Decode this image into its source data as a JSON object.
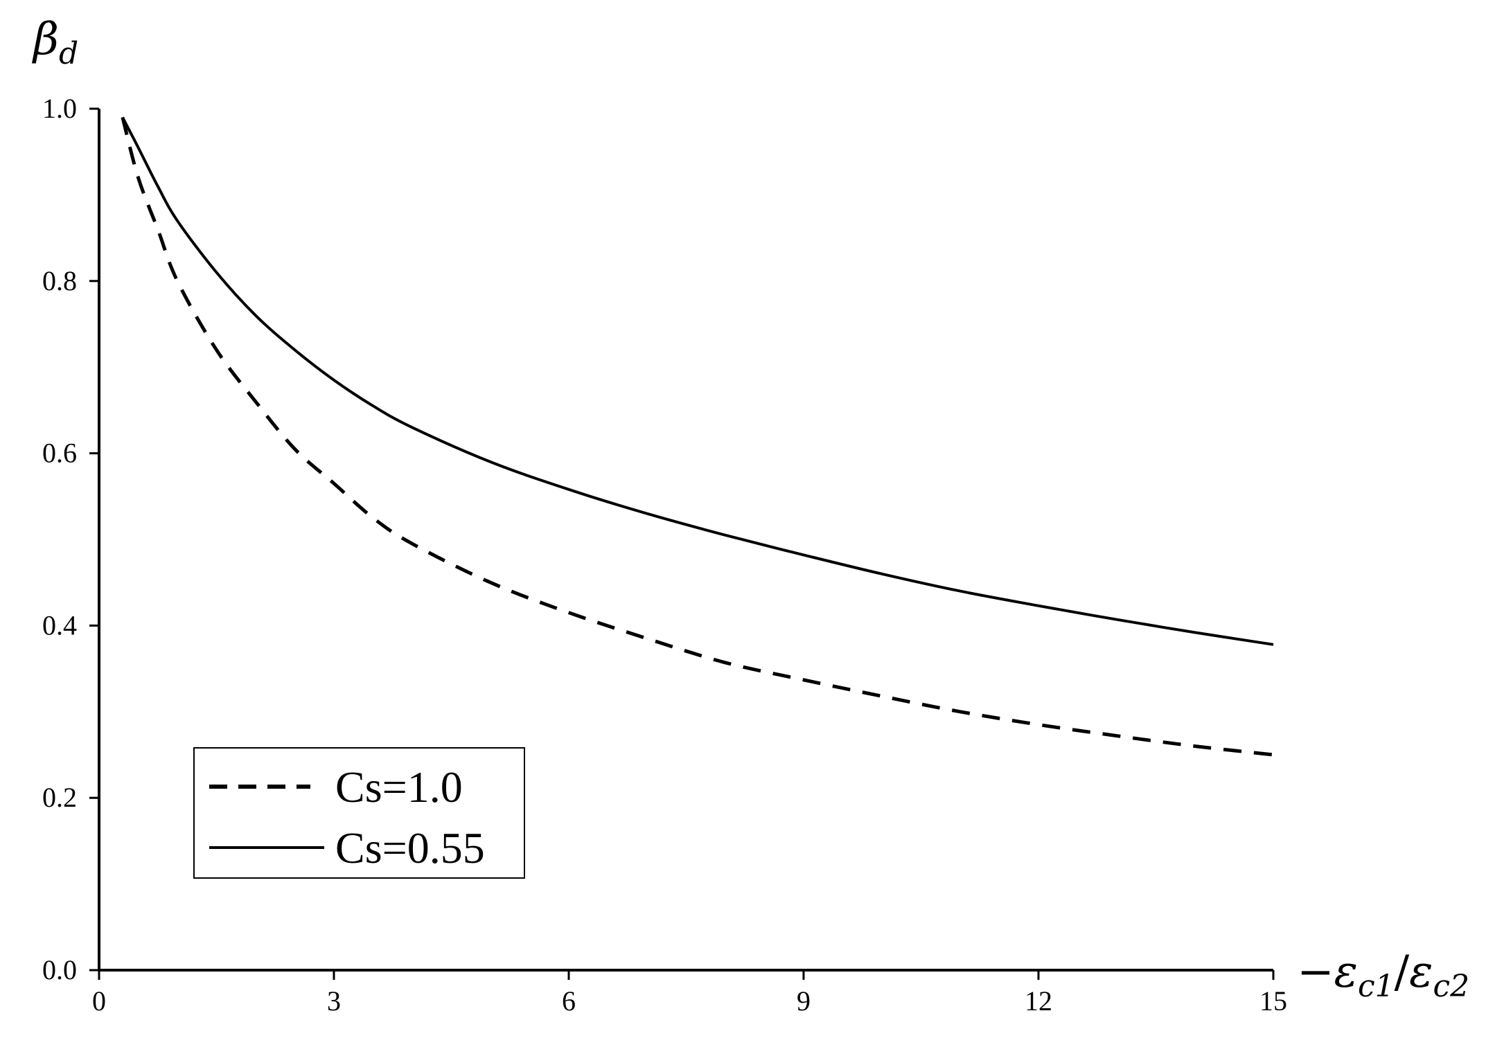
{
  "chart_data": {
    "type": "line",
    "title": "",
    "ylabel": {
      "symbol": "β",
      "subscript": "d"
    },
    "xlabel": {
      "prefix": "−",
      "num_symbol": "ε",
      "num_subscript": "c1",
      "slash": "/",
      "den_symbol": "ε",
      "den_subscript": "c2"
    },
    "xlim": [
      0,
      15
    ],
    "ylim": [
      0,
      1.0
    ],
    "x_ticks": [
      0,
      3,
      6,
      9,
      12,
      15
    ],
    "x_tick_labels": [
      "0",
      "3",
      "6",
      "9",
      "12",
      "15"
    ],
    "y_ticks": [
      0,
      0.2,
      0.4,
      0.6,
      0.8,
      1.0
    ],
    "y_tick_labels": [
      "0.0",
      "0.2",
      "0.4",
      "0.6",
      "0.8",
      "1.0"
    ],
    "grid": false,
    "legend_position": "bottom-left",
    "series": [
      {
        "name": "Cs=1.0",
        "style": "dashed",
        "color": "#000000",
        "x": [
          0.3,
          0.5,
          0.75,
          1,
          1.5,
          2,
          2.5,
          3,
          3.5,
          4,
          5,
          6,
          7,
          8,
          9,
          10,
          11,
          12,
          13,
          14,
          15
        ],
        "y": [
          0.99,
          0.92,
          0.86,
          0.8,
          0.72,
          0.66,
          0.605,
          0.565,
          0.525,
          0.495,
          0.45,
          0.415,
          0.385,
          0.357,
          0.337,
          0.318,
          0.3,
          0.285,
          0.272,
          0.26,
          0.25
        ]
      },
      {
        "name": "Cs=0.55",
        "style": "solid",
        "color": "#000000",
        "x": [
          0.3,
          0.5,
          0.75,
          1,
          1.5,
          2,
          2.5,
          3,
          3.5,
          4,
          5,
          6,
          7,
          8,
          9,
          10,
          11,
          12,
          13,
          14,
          15
        ],
        "y": [
          0.99,
          0.955,
          0.91,
          0.87,
          0.81,
          0.76,
          0.72,
          0.685,
          0.655,
          0.63,
          0.59,
          0.558,
          0.53,
          0.505,
          0.482,
          0.46,
          0.44,
          0.423,
          0.407,
          0.392,
          0.378
        ]
      }
    ]
  }
}
